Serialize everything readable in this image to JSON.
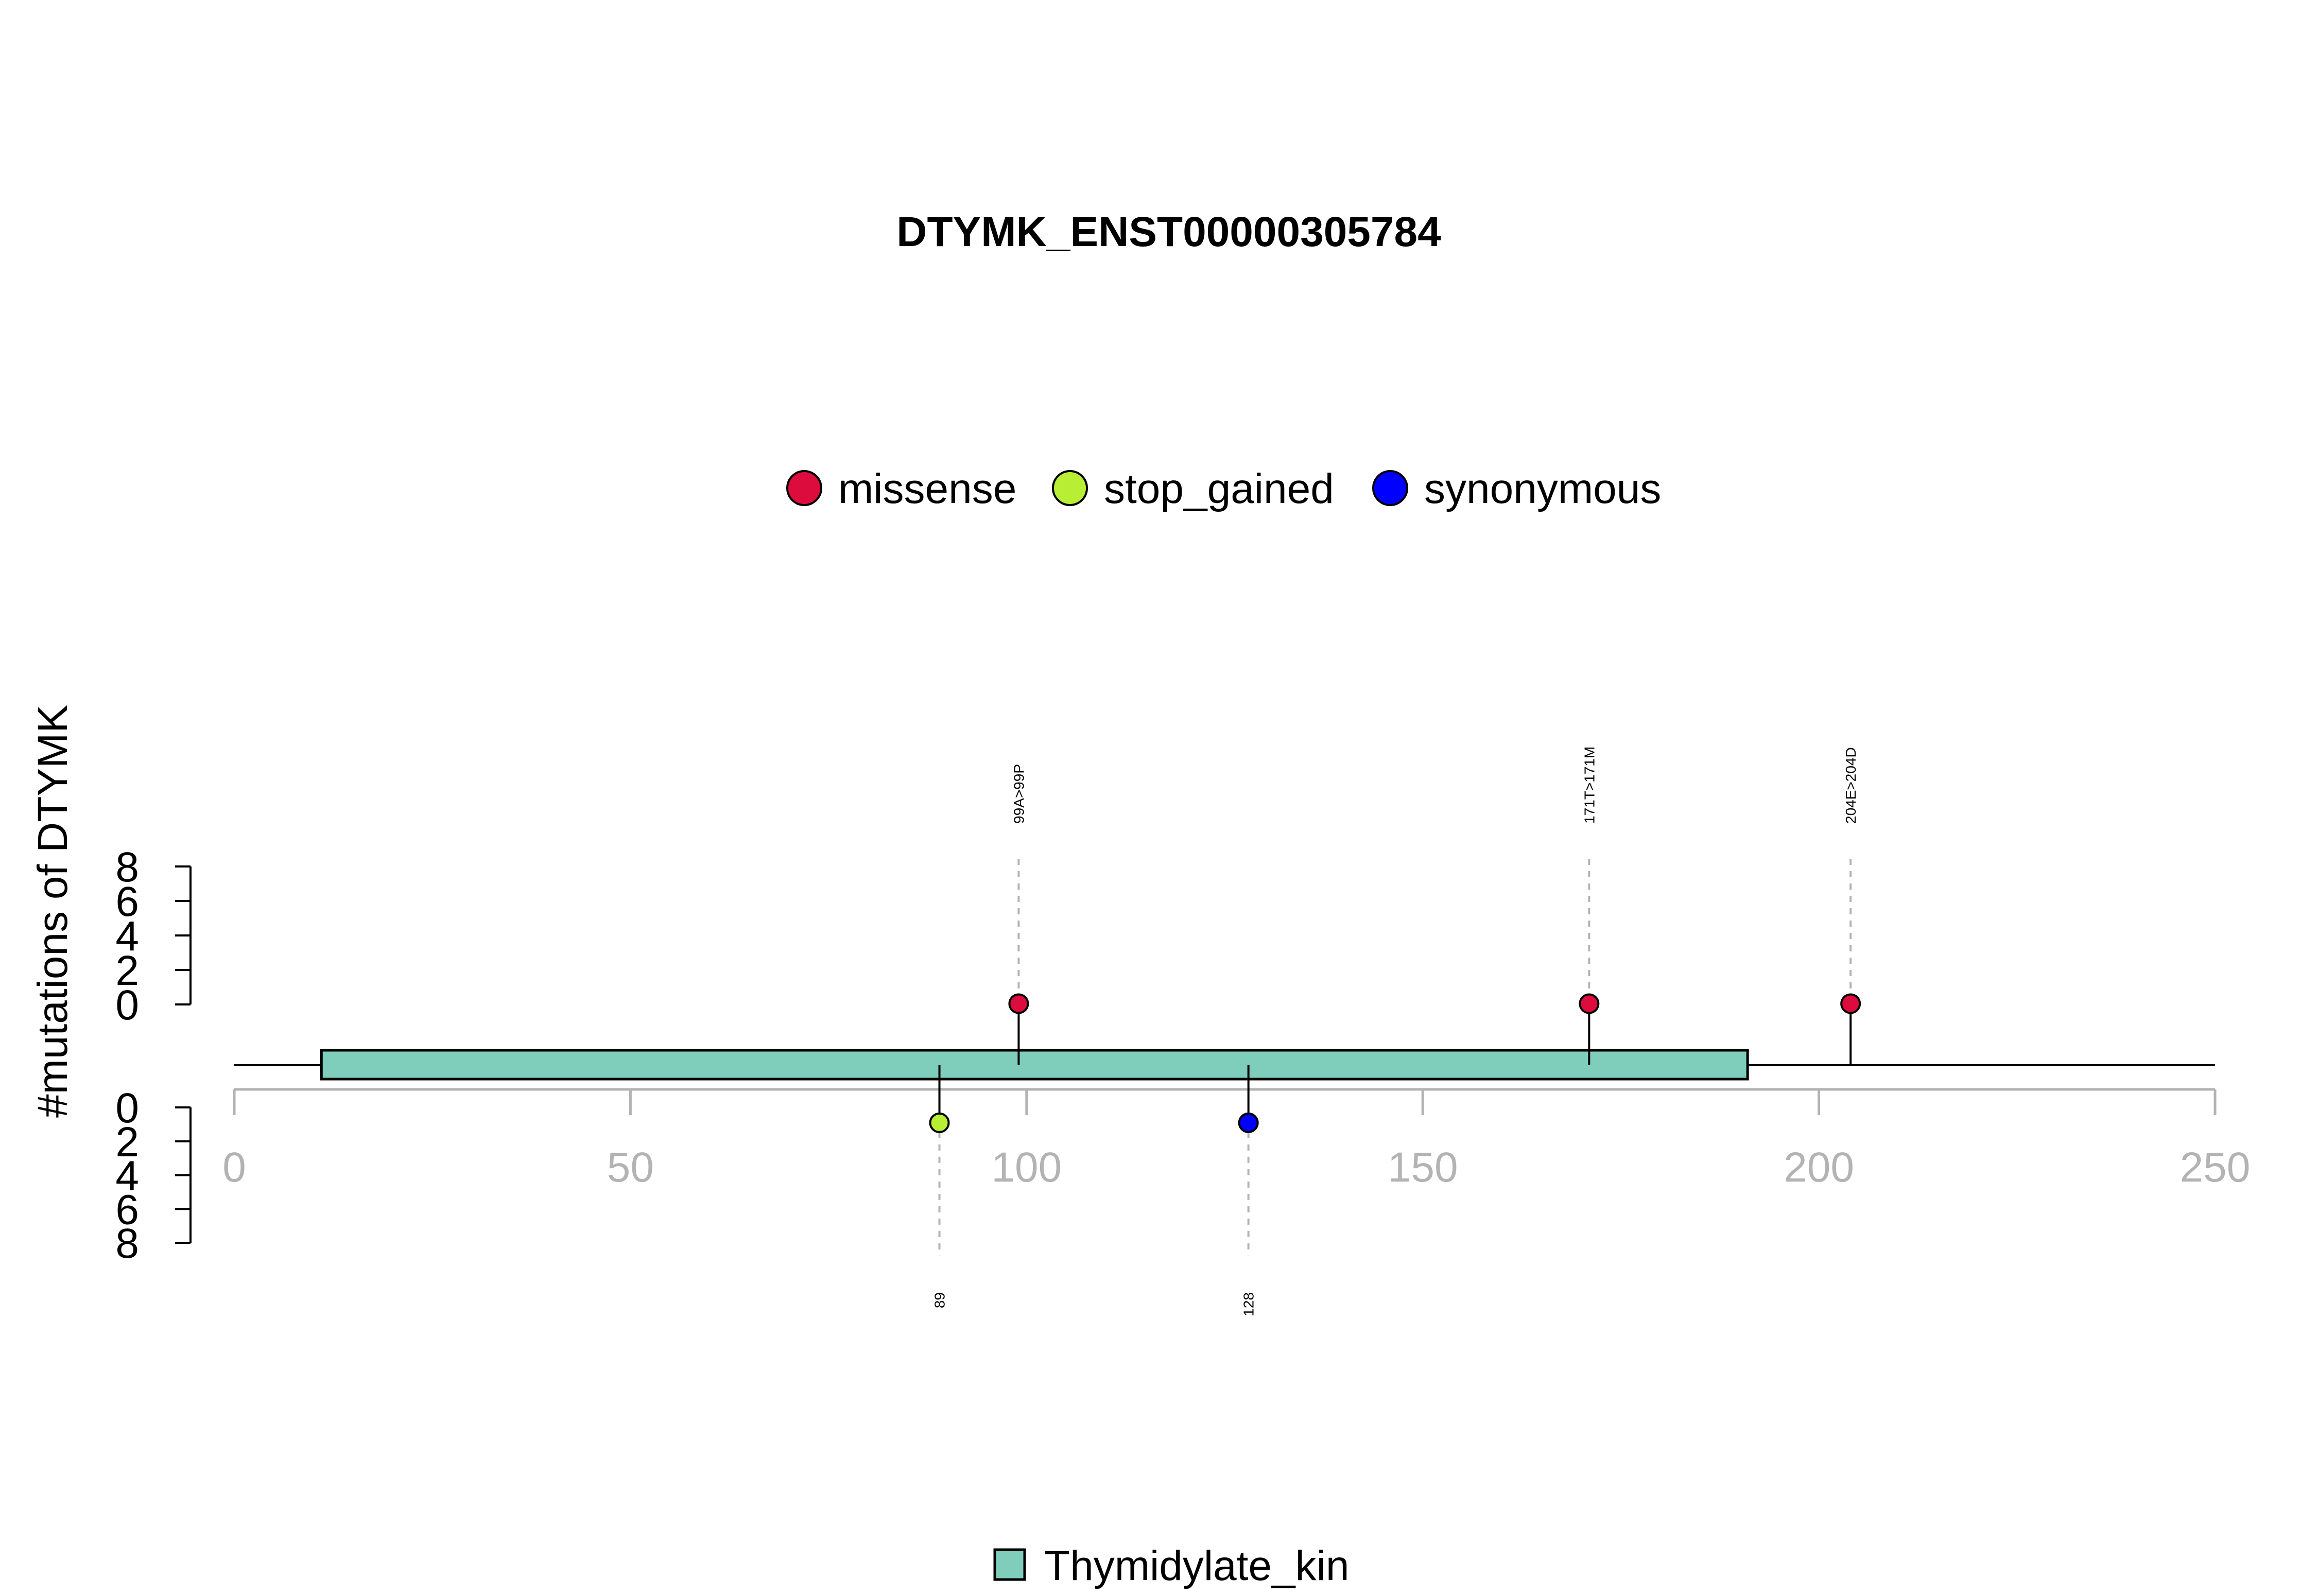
{
  "chart_data": {
    "type": "lollipop",
    "title": "DTYMK_ENST00000305784",
    "ylabel": "#mutations of DTYMK",
    "xlim": [
      0,
      250
    ],
    "x_ticks": [
      0,
      50,
      100,
      150,
      200,
      250
    ],
    "x_tick_labels": [
      "0",
      "50",
      "100",
      "150",
      "200",
      "250"
    ],
    "protein_length": 250,
    "y_ticks_upper": [
      "8",
      "6",
      "4",
      "2",
      "0"
    ],
    "y_ticks_lower": [
      "0",
      "2",
      "4",
      "6",
      "8"
    ],
    "ylim": [
      0,
      8
    ],
    "mutation_legend": [
      {
        "name": "missense",
        "color": "#dc0d3c"
      },
      {
        "name": "stop_gained",
        "color": "#b8ef35"
      },
      {
        "name": "synonymous",
        "color": "#0000ff"
      }
    ],
    "mutations_above": [
      {
        "position": 99,
        "count": 1,
        "type": "missense",
        "color": "#dc0d3c",
        "label": "99A>99P"
      },
      {
        "position": 171,
        "count": 1,
        "type": "missense",
        "color": "#dc0d3c",
        "label": "171T>171M"
      },
      {
        "position": 204,
        "count": 1,
        "type": "missense",
        "color": "#dc0d3c",
        "label": "204E>204D"
      }
    ],
    "mutations_below": [
      {
        "position": 89,
        "count": 1,
        "type": "stop_gained",
        "color": "#b8ef35",
        "label": "89"
      },
      {
        "position": 128,
        "count": 1,
        "type": "synonymous",
        "color": "#0000ff",
        "label": "128"
      }
    ],
    "domains": [
      {
        "name": "Thymidylate_kin",
        "start": 11,
        "end": 191,
        "color": "#7fcdbb"
      }
    ]
  }
}
